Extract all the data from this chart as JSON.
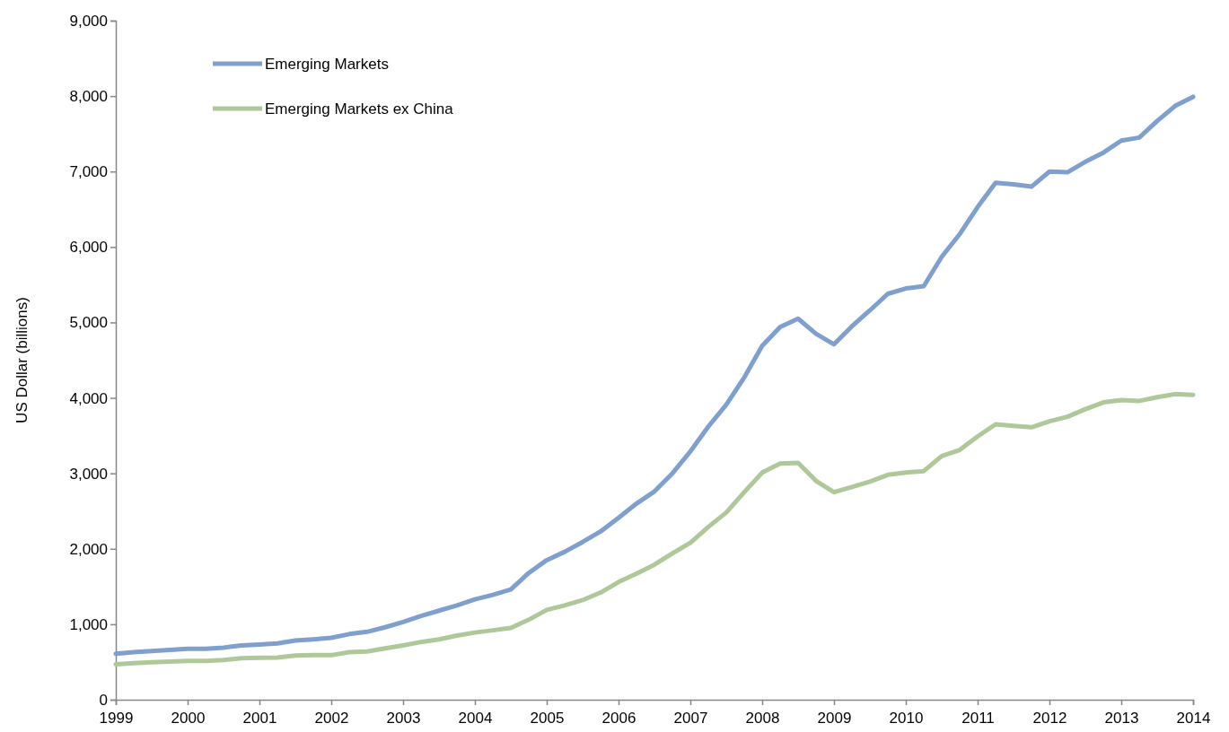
{
  "chart_data": {
    "type": "line",
    "ylabel": "US Dollar (billions)",
    "x": [
      1999,
      1999.25,
      1999.5,
      1999.75,
      2000,
      2000.25,
      2000.5,
      2000.75,
      2001,
      2001.25,
      2001.5,
      2001.75,
      2002,
      2002.25,
      2002.5,
      2002.75,
      2003,
      2003.25,
      2003.5,
      2003.75,
      2004,
      2004.25,
      2004.5,
      2004.75,
      2005,
      2005.25,
      2005.5,
      2005.75,
      2006,
      2006.25,
      2006.5,
      2006.75,
      2007,
      2007.25,
      2007.5,
      2007.75,
      2008,
      2008.25,
      2008.5,
      2008.75,
      2009,
      2009.25,
      2009.5,
      2009.75,
      2010,
      2010.25,
      2010.5,
      2010.75,
      2011,
      2011.25,
      2011.5,
      2011.75,
      2012,
      2012.25,
      2012.5,
      2012.75,
      2013,
      2013.25,
      2013.5,
      2013.75,
      2014
    ],
    "series": [
      {
        "name": "Emerging Markets",
        "color": "#7f9fcf",
        "values": [
          610,
          630,
          645,
          660,
          675,
          675,
          690,
          720,
          730,
          745,
          785,
          800,
          820,
          870,
          900,
          960,
          1030,
          1110,
          1180,
          1250,
          1330,
          1390,
          1460,
          1680,
          1850,
          1960,
          2090,
          2230,
          2410,
          2600,
          2760,
          3000,
          3290,
          3620,
          3910,
          4270,
          4690,
          4940,
          5050,
          4850,
          4710,
          4950,
          5160,
          5380,
          5450,
          5480,
          5870,
          6170,
          6530,
          6850,
          6830,
          6800,
          7000,
          6990,
          7130,
          7250,
          7410,
          7450,
          7670,
          7870,
          7990
        ]
      },
      {
        "name": "Emerging Markets ex China",
        "color": "#afc89a",
        "values": [
          470,
          485,
          495,
          505,
          515,
          515,
          525,
          550,
          555,
          560,
          585,
          590,
          590,
          630,
          640,
          680,
          720,
          765,
          800,
          850,
          890,
          920,
          950,
          1060,
          1190,
          1250,
          1320,
          1420,
          1560,
          1670,
          1790,
          1940,
          2080,
          2290,
          2480,
          2750,
          3010,
          3130,
          3140,
          2900,
          2750,
          2820,
          2890,
          2980,
          3010,
          3030,
          3230,
          3310,
          3490,
          3650,
          3630,
          3610,
          3690,
          3750,
          3850,
          3940,
          3970,
          3960,
          4010,
          4050,
          4040
        ]
      }
    ],
    "xlim": [
      1999,
      2014
    ],
    "xticks": [
      1999,
      2000,
      2001,
      2002,
      2003,
      2004,
      2005,
      2006,
      2007,
      2008,
      2009,
      2010,
      2011,
      2012,
      2013,
      2014
    ],
    "ylim": [
      0,
      9000
    ],
    "yticks": [
      0,
      {
        "value": 1000,
        "label": "1,000"
      },
      {
        "value": 2000,
        "label": "2,000"
      },
      {
        "value": 3000,
        "label": "3,000"
      },
      {
        "value": 4000,
        "label": "4,000"
      },
      {
        "value": 5000,
        "label": "5,000"
      },
      {
        "value": 6000,
        "label": "6,000"
      },
      {
        "value": 7000,
        "label": "7,000"
      },
      {
        "value": 8000,
        "label": "8,000"
      },
      {
        "value": 9000,
        "label": "9,000"
      }
    ],
    "grid": false,
    "legend": "top left",
    "line_style": "solid"
  }
}
